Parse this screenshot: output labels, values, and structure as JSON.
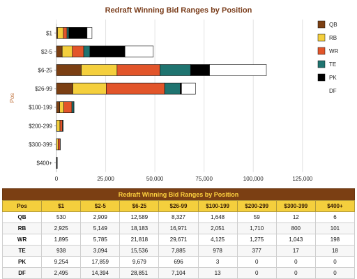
{
  "chart_data": {
    "type": "bar",
    "orientation": "horizontal",
    "stacked": true,
    "title": "Redraft Winning Bid Ranges by Position",
    "ylabel": "Pos",
    "xlabel": "",
    "categories": [
      "$1",
      "$2-5",
      "$6-25",
      "$26-99",
      "$100-199",
      "$200-299",
      "$300-399",
      "$400+"
    ],
    "xlim": [
      0,
      135000
    ],
    "xticks": [
      0,
      25000,
      50000,
      75000,
      100000,
      125000
    ],
    "xtick_labels": [
      "0",
      "25,000",
      "50,000",
      "75,000",
      "100,000",
      "125,000"
    ],
    "grid": "vertical",
    "legend": "right",
    "series": [
      {
        "name": "QB",
        "color": "#7b3f13",
        "values": [
          530,
          2909,
          12589,
          8327,
          1648,
          59,
          12,
          6
        ]
      },
      {
        "name": "RB",
        "color": "#f4cf3d",
        "values": [
          2925,
          5149,
          18183,
          16971,
          2051,
          1710,
          800,
          101
        ]
      },
      {
        "name": "WR",
        "color": "#e2552a",
        "values": [
          1895,
          5785,
          21818,
          29671,
          4125,
          1275,
          1043,
          198
        ]
      },
      {
        "name": "TE",
        "color": "#1f7470",
        "values": [
          938,
          3094,
          15536,
          7885,
          978,
          377,
          17,
          18
        ]
      },
      {
        "name": "PK",
        "color": "#000000",
        "values": [
          9254,
          17859,
          9679,
          696,
          3,
          0,
          0,
          0
        ]
      },
      {
        "name": "DF",
        "color": "#ffffff",
        "values": [
          2495,
          14394,
          28851,
          7104,
          13,
          0,
          0,
          0
        ]
      }
    ]
  },
  "table": {
    "title": "Redraft Winning Bid Ranges by Position",
    "columns": [
      "Pos",
      "$1",
      "$2-5",
      "$6-25",
      "$26-99",
      "$100-199",
      "$200-299",
      "$300-399",
      "$400+"
    ],
    "rows": [
      [
        "QB",
        "530",
        "2,909",
        "12,589",
        "8,327",
        "1,648",
        "59",
        "12",
        "6"
      ],
      [
        "RB",
        "2,925",
        "5,149",
        "18,183",
        "16,971",
        "2,051",
        "1,710",
        "800",
        "101"
      ],
      [
        "WR",
        "1,895",
        "5,785",
        "21,818",
        "29,671",
        "4,125",
        "1,275",
        "1,043",
        "198"
      ],
      [
        "TE",
        "938",
        "3,094",
        "15,536",
        "7,885",
        "978",
        "377",
        "17",
        "18"
      ],
      [
        "PK",
        "9,254",
        "17,859",
        "9,679",
        "696",
        "3",
        "0",
        "0",
        "0"
      ],
      [
        "DF",
        "2,495",
        "14,394",
        "28,851",
        "7,104",
        "13",
        "0",
        "0",
        "0"
      ]
    ]
  }
}
